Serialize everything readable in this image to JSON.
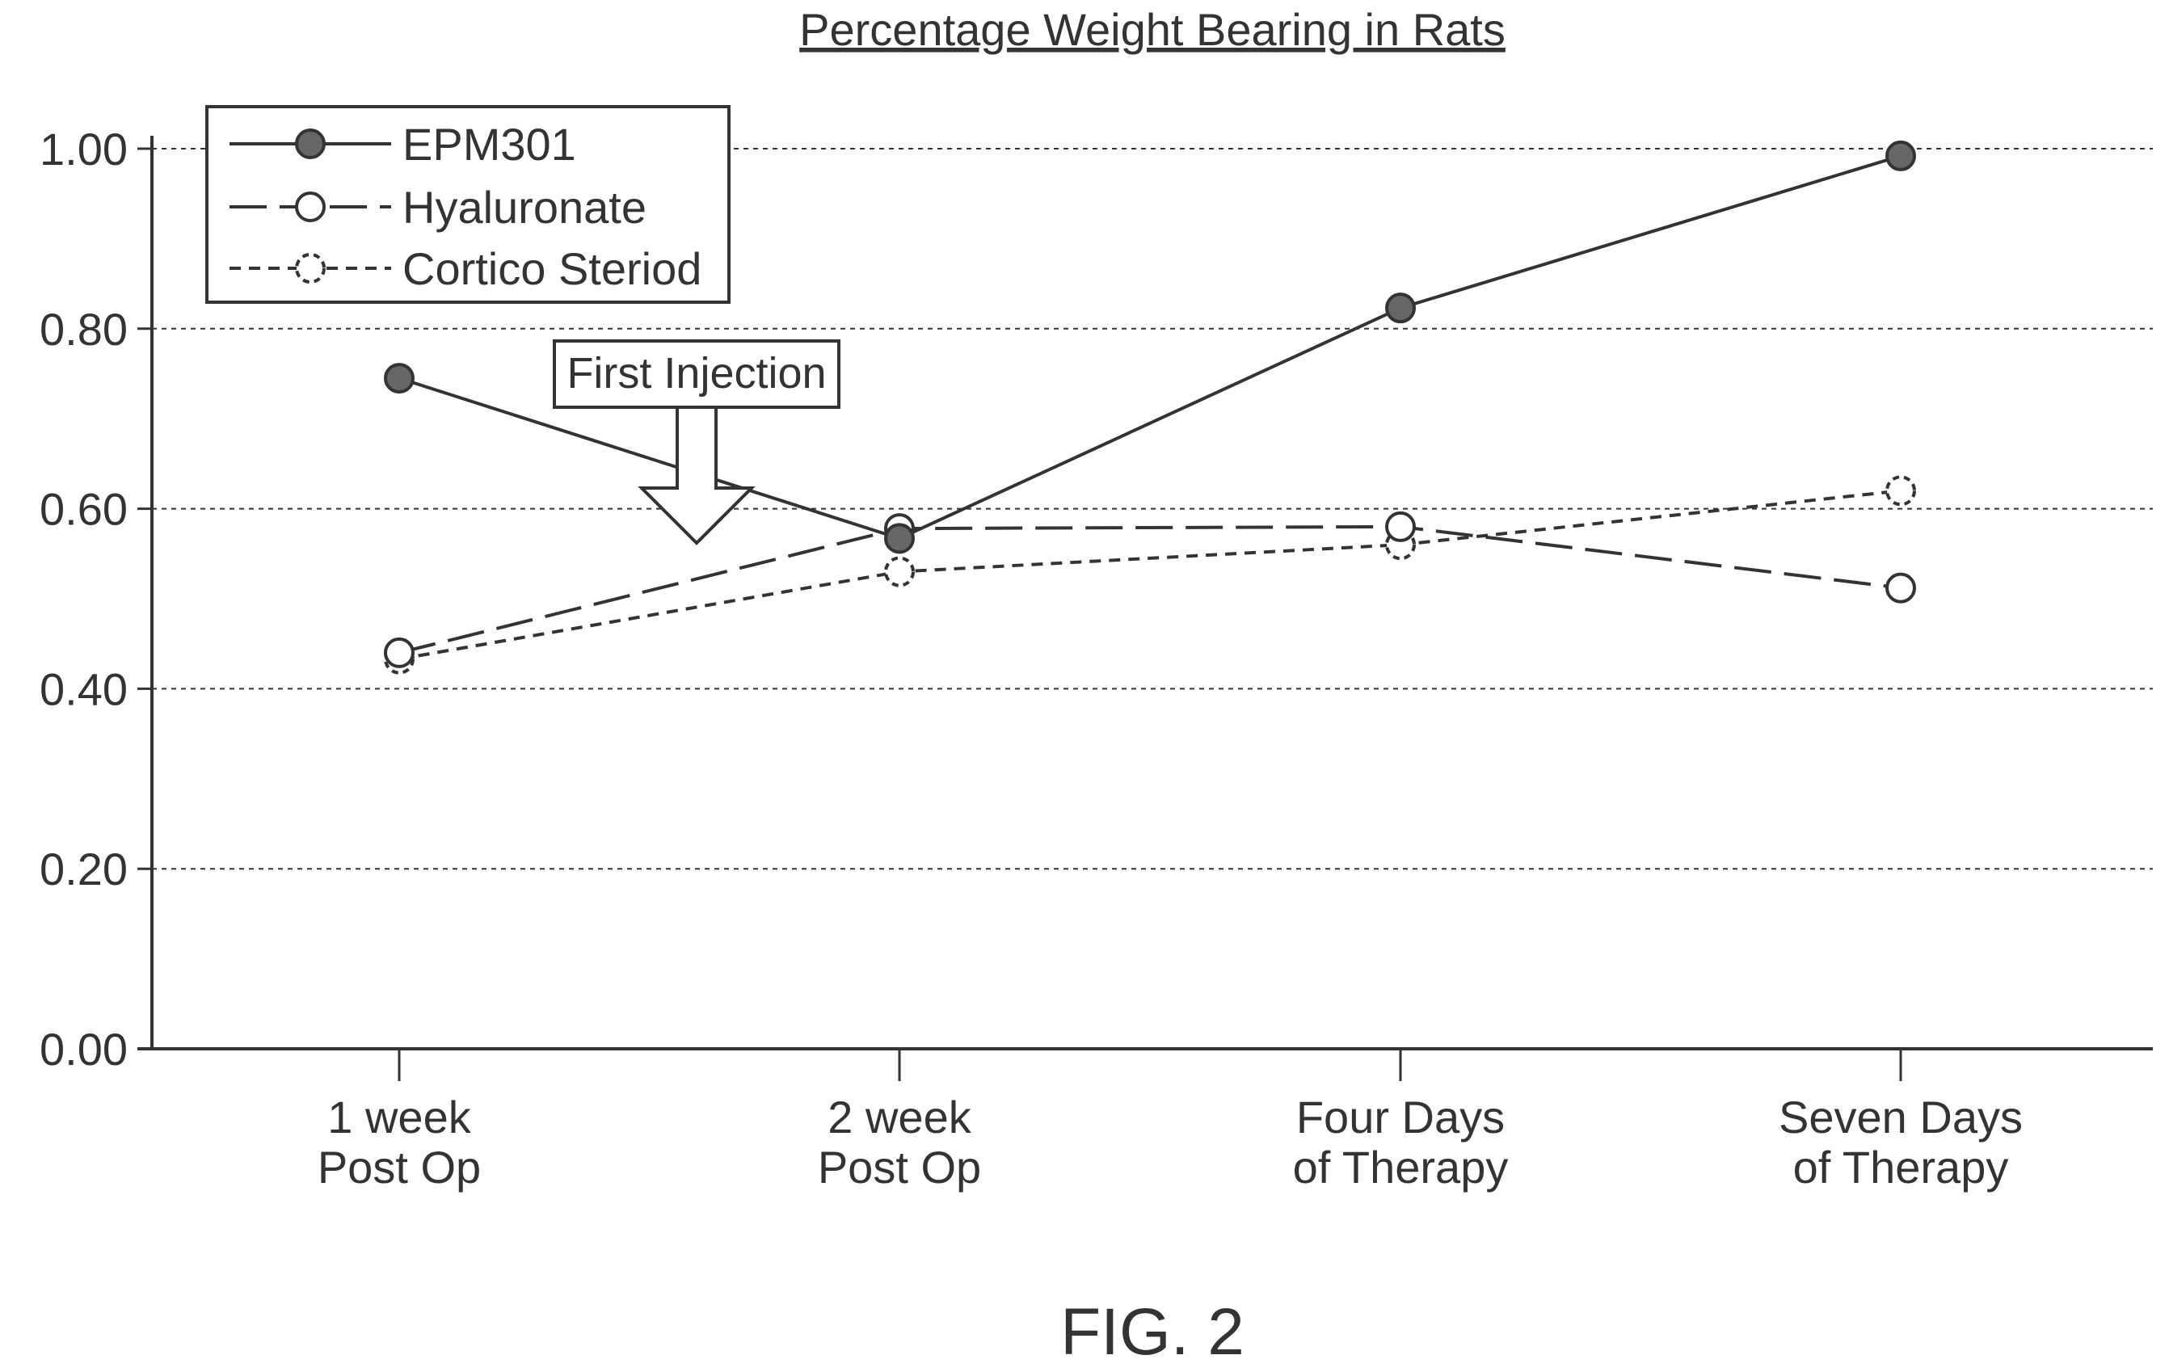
{
  "chart_data": {
    "type": "line",
    "title": "Percentage Weight Bearing in Rats",
    "xlabel": "",
    "ylabel": "",
    "categories": [
      [
        "1 week",
        "Post Op"
      ],
      [
        "2 week",
        "Post Op"
      ],
      [
        "Four Days",
        "of Therapy"
      ],
      [
        "Seven Days",
        "of Therapy"
      ]
    ],
    "yticks": [
      "0.00",
      "0.20",
      "0.40",
      "0.60",
      "0.80",
      "1.00"
    ],
    "ylim": [
      0,
      1.0
    ],
    "grid": "horizontal dashed",
    "legend_position": "top-left",
    "series": [
      {
        "name": "EPM301",
        "values": [
          0.745,
          0.567,
          0.823,
          0.992
        ],
        "line_style": "solid",
        "marker": "filled-circle"
      },
      {
        "name": "Hyaluronate",
        "values": [
          0.44,
          0.578,
          0.58,
          0.512
        ],
        "line_style": "long-dash",
        "marker": "open-circle"
      },
      {
        "name": "Cortico Steriod",
        "values": [
          0.433,
          0.53,
          0.56,
          0.62
        ],
        "line_style": "short-dash",
        "marker": "dashed-open-circle"
      }
    ],
    "annotations": [
      {
        "text": "First Injection",
        "between": [
          "1 week Post Op",
          "2 week Post Op"
        ]
      }
    ]
  },
  "caption": "FIG. 2",
  "colors": {
    "ink": "#333333",
    "marker_fill": "#666666",
    "background": "#ffffff"
  }
}
